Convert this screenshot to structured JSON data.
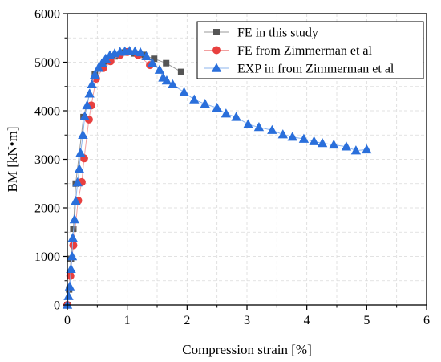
{
  "chart_data": {
    "type": "scatter",
    "xlabel": "Compression strain [%]",
    "ylabel": "BM [kN•m]",
    "xlim": [
      0,
      6
    ],
    "ylim": [
      0,
      6000
    ],
    "xticks": [
      "0",
      "1",
      "2",
      "3",
      "4",
      "5",
      "6"
    ],
    "yticks": [
      "0",
      "1000",
      "2000",
      "3000",
      "4000",
      "5000",
      "6000"
    ],
    "grid": true,
    "legend_position": "top-right",
    "series": [
      {
        "name": "FE in this study",
        "marker": "square",
        "color": "#555555",
        "line_color": "#9a9a9a",
        "points": [
          [
            0,
            0
          ],
          [
            0.03,
            320
          ],
          [
            0.06,
            950
          ],
          [
            0.1,
            1570
          ],
          [
            0.14,
            2500
          ],
          [
            0.27,
            3870
          ],
          [
            0.46,
            4760
          ],
          [
            0.62,
            5000
          ],
          [
            0.79,
            5120
          ],
          [
            0.96,
            5200
          ],
          [
            1.12,
            5180
          ],
          [
            1.27,
            5150
          ],
          [
            1.45,
            5070
          ],
          [
            1.65,
            4980
          ],
          [
            1.9,
            4800
          ]
        ]
      },
      {
        "name": "FE from Zimmerman et al",
        "marker": "circle",
        "color": "#e8403f",
        "line_color": "#f2a0a0",
        "points": [
          [
            0,
            0
          ],
          [
            0.05,
            600
          ],
          [
            0.1,
            1230
          ],
          [
            0.18,
            2150
          ],
          [
            0.24,
            2530
          ],
          [
            0.28,
            3020
          ],
          [
            0.36,
            3820
          ],
          [
            0.4,
            4110
          ],
          [
            0.48,
            4660
          ],
          [
            0.6,
            4880
          ],
          [
            0.72,
            5020
          ],
          [
            0.88,
            5150
          ],
          [
            1.0,
            5210
          ],
          [
            1.18,
            5150
          ],
          [
            1.38,
            4940
          ]
        ]
      },
      {
        "name": "EXP in from Zimmerman et al",
        "marker": "triangle",
        "color": "#2a6fdb",
        "line_color": "#8cb4ee",
        "points": [
          [
            0,
            0
          ],
          [
            0.02,
            180
          ],
          [
            0.04,
            380
          ],
          [
            0.06,
            740
          ],
          [
            0.08,
            1000
          ],
          [
            0.09,
            1380
          ],
          [
            0.12,
            1760
          ],
          [
            0.14,
            2140
          ],
          [
            0.17,
            2520
          ],
          [
            0.2,
            2800
          ],
          [
            0.22,
            3130
          ],
          [
            0.26,
            3500
          ],
          [
            0.29,
            3880
          ],
          [
            0.33,
            4110
          ],
          [
            0.37,
            4350
          ],
          [
            0.41,
            4540
          ],
          [
            0.46,
            4740
          ],
          [
            0.52,
            4880
          ],
          [
            0.58,
            4980
          ],
          [
            0.64,
            5070
          ],
          [
            0.71,
            5140
          ],
          [
            0.79,
            5180
          ],
          [
            0.88,
            5210
          ],
          [
            0.96,
            5220
          ],
          [
            1.04,
            5230
          ],
          [
            1.13,
            5220
          ],
          [
            1.22,
            5200
          ],
          [
            1.32,
            5120
          ],
          [
            1.42,
            4980
          ],
          [
            1.54,
            4840
          ],
          [
            1.6,
            4680
          ],
          [
            1.66,
            4620
          ],
          [
            1.76,
            4540
          ],
          [
            1.95,
            4380
          ],
          [
            2.12,
            4230
          ],
          [
            2.3,
            4140
          ],
          [
            2.5,
            4060
          ],
          [
            2.65,
            3940
          ],
          [
            2.82,
            3870
          ],
          [
            3.02,
            3720
          ],
          [
            3.2,
            3660
          ],
          [
            3.42,
            3600
          ],
          [
            3.6,
            3510
          ],
          [
            3.76,
            3460
          ],
          [
            3.95,
            3420
          ],
          [
            4.12,
            3370
          ],
          [
            4.26,
            3330
          ],
          [
            4.45,
            3300
          ],
          [
            4.66,
            3260
          ],
          [
            4.82,
            3180
          ],
          [
            5.0,
            3200
          ]
        ]
      }
    ]
  }
}
